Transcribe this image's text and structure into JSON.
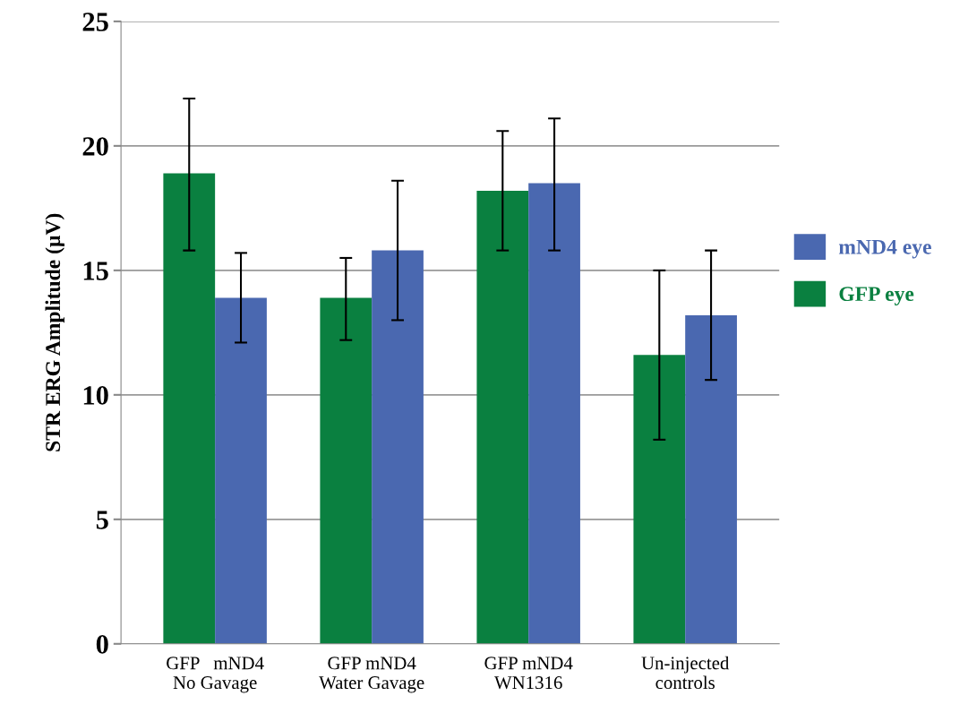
{
  "chart_data": {
    "type": "bar",
    "ylabel": "STR ERG Amplitude (μV)",
    "categories": [
      "GFP   mND4\nNo Gavage",
      "GFP mND4\nWater Gavage",
      "GFP mND4\nWN1316",
      "Un-injected\ncontrols"
    ],
    "series": [
      {
        "name": "GFP eye",
        "color": "#0a8040",
        "values": [
          18.9,
          13.9,
          18.2,
          11.6
        ],
        "errors": [
          [
            15.8,
            21.9
          ],
          [
            12.2,
            15.5
          ],
          [
            15.8,
            20.6
          ],
          [
            8.2,
            15.0
          ]
        ]
      },
      {
        "name": "mND4 eye",
        "color": "#4a68b0",
        "values": [
          13.9,
          15.8,
          18.5,
          13.2
        ],
        "errors": [
          [
            12.1,
            15.7
          ],
          [
            13.0,
            18.6
          ],
          [
            15.8,
            21.1
          ],
          [
            10.6,
            15.8
          ]
        ]
      }
    ],
    "ylim": [
      0,
      25
    ],
    "yticks": [
      0,
      5,
      10,
      15,
      20,
      25
    ],
    "grid": "y",
    "legend": "right"
  }
}
